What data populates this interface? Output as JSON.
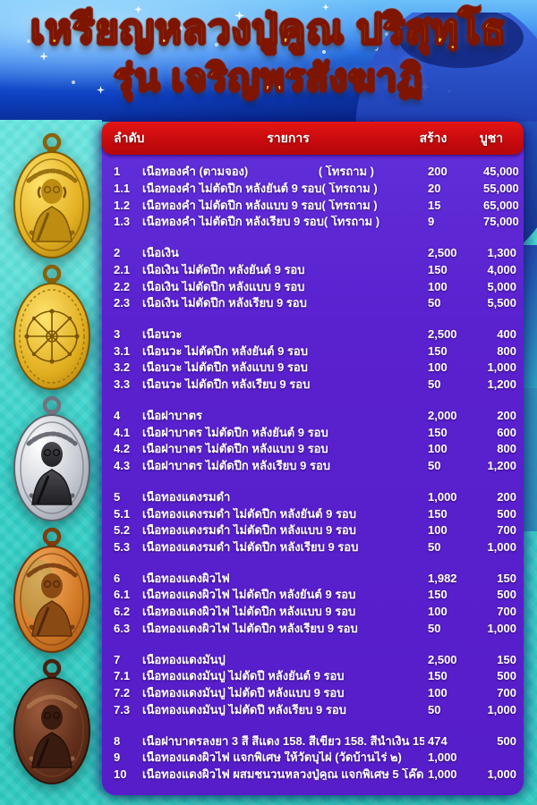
{
  "title": {
    "line1": "เหรียญหลวงปู่คูณ ปริสุทฺโธ",
    "line2": "รุ่น เจริญพรสังฆาฏิ"
  },
  "table": {
    "columns": {
      "no": "ลำดับ",
      "item": "รายการ",
      "made": "สร้าง",
      "price": "บูชา"
    },
    "sections": [
      {
        "rows": [
          {
            "no": "1",
            "item": "เนื้อทองคำ (ตามจอง)",
            "note": "( โทรถาม )",
            "made": "200",
            "price": "45,000"
          },
          {
            "no": "1.1",
            "item": "เนื้อทองคำ ไม่ตัดปีก หลังยันต์ 9 รอบ",
            "note": "( โทรถาม )",
            "made": "20",
            "price": "55,000"
          },
          {
            "no": "1.2",
            "item": "เนื้อทองคำ ไม่ตัดปีก หลังแบบ 9 รอบ",
            "note": "( โทรถาม )",
            "made": "15",
            "price": "65,000"
          },
          {
            "no": "1.3",
            "item": "เนื้อทองคำ ไม่ตัดปีก หลังเรียบ 9 รอบ",
            "note": "( โทรถาม )",
            "made": "9",
            "price": "75,000"
          }
        ]
      },
      {
        "rows": [
          {
            "no": "2",
            "item": "เนื้อเงิน",
            "made": "2,500",
            "price": "1,300"
          },
          {
            "no": "2.1",
            "item": "เนื้อเงิน ไม่ตัดปีก หลังยันต์ 9 รอบ",
            "made": "150",
            "price": "4,000"
          },
          {
            "no": "2.2",
            "item": "เนื้อเงิน ไม่ตัดปีก หลังแบบ 9 รอบ",
            "made": "100",
            "price": "5,000"
          },
          {
            "no": "2.3",
            "item": "เนื้อเงิน ไม่ตัดปีก หลังเรียบ 9 รอบ",
            "made": "50",
            "price": "5,500"
          }
        ]
      },
      {
        "rows": [
          {
            "no": "3",
            "item": "เนื้อนวะ",
            "made": "2,500",
            "price": "400"
          },
          {
            "no": "3.1",
            "item": "เนื้อนวะ ไม่ตัดปีก หลังยันต์ 9 รอบ",
            "made": "150",
            "price": "800"
          },
          {
            "no": "3.2",
            "item": "เนื้อนวะ ไม่ตัดปีก หลังแบบ 9 รอบ",
            "made": "100",
            "price": "1,000"
          },
          {
            "no": "3.3",
            "item": "เนื้อนวะ ไม่ตัดปีก หลังเรียบ 9 รอบ",
            "made": "50",
            "price": "1,200"
          }
        ]
      },
      {
        "rows": [
          {
            "no": "4",
            "item": "เนื้อฝาบาตร",
            "made": "2,000",
            "price": "200"
          },
          {
            "no": "4.1",
            "item": "เนื้อฝาบาตร ไม่ตัดปีก หลังยันต์ 9 รอบ",
            "made": "150",
            "price": "600"
          },
          {
            "no": "4.2",
            "item": "เนื้อฝาบาตร ไม่ตัดปีก หลังแบบ 9 รอบ",
            "made": "100",
            "price": "800"
          },
          {
            "no": "4.3",
            "item": "เนื้อฝาบาตร ไม่ตัดปีก หลังเรียบ 9 รอบ",
            "made": "50",
            "price": "1,200"
          }
        ]
      },
      {
        "rows": [
          {
            "no": "5",
            "item": "เนื้อทองแดงรมดำ",
            "made": "1,000",
            "price": "200"
          },
          {
            "no": "5.1",
            "item": "เนื้อทองแดงรมดำ ไม่ตัดปีก หลังยันต์ 9 รอบ",
            "made": "150",
            "price": "500"
          },
          {
            "no": "5.2",
            "item": "เนื้อทองแดงรมดำ ไม่ตัดปีก หลังแบบ 9 รอบ",
            "made": "100",
            "price": "700"
          },
          {
            "no": "5.3",
            "item": "เนื้อทองแดงรมดำ ไม่ตัดปีก หลังเรียบ 9 รอบ",
            "made": "50",
            "price": "1,000"
          }
        ]
      },
      {
        "rows": [
          {
            "no": "6",
            "item": "เนื้อทองแดงผิวไฟ",
            "made": "1,982",
            "price": "150"
          },
          {
            "no": "6.1",
            "item": "เนื้อทองแดงผิวไฟ ไม่ตัดปีก หลังยันต์ 9 รอบ",
            "made": "150",
            "price": "500"
          },
          {
            "no": "6.2",
            "item": "เนื้อทองแดงผิวไฟ ไม่ตัดปีก หลังแบบ 9 รอบ",
            "made": "100",
            "price": "700"
          },
          {
            "no": "6.3",
            "item": "เนื้อทองแดงผิวไฟ ไม่ตัดปีก หลังเรียบ 9 รอบ",
            "made": "50",
            "price": "1,000"
          }
        ]
      },
      {
        "rows": [
          {
            "no": "7",
            "item": "เนื้อทองแดงมันปู",
            "made": "2,500",
            "price": "150"
          },
          {
            "no": "7.1",
            "item": "เนื้อทองแดงมันปู ไม่ตัดปี หลังยันต์ 9 รอบ",
            "made": "150",
            "price": "500"
          },
          {
            "no": "7.2",
            "item": "เนื้อทองแดงมันปู ไม่ตัดปี หลังแบบ 9 รอบ",
            "made": "100",
            "price": "700"
          },
          {
            "no": "7.3",
            "item": "เนื้อทองแดงมันปู ไม่ตัดปี หลังเรียบ 9 รอบ",
            "made": "50",
            "price": "1,000"
          }
        ]
      },
      {
        "rows": [
          {
            "no": "8",
            "item": "เนื้อฝาบาตรลงยา 3 สี สีแดง 158. สีเขียว 158. สีน้ำเงิน 158",
            "made": "474",
            "price": "500"
          },
          {
            "no": "9",
            "item": "เนื้อทองแดงผิวไฟ แจกพิเศษ ให้วัดบุไผ่ (วัดบ้านไร่ ๒)",
            "made": "1,000",
            "price": ""
          },
          {
            "no": "10",
            "item": "เนื้อทองแดงผิวไฟ ผสมชนวนหลวงปู่คูณ แจกพิเศษ 5 โค๊ด 9 รอบ",
            "made": "1,000",
            "price": "1,000"
          }
        ]
      }
    ]
  },
  "amulets": [
    {
      "id": "amulet-gold-front",
      "color": "#e8b923"
    },
    {
      "id": "amulet-gold-back-yantra",
      "color": "#e8b923"
    },
    {
      "id": "amulet-silver-front",
      "color": "#c9ccd2"
    },
    {
      "id": "amulet-copper-fire-front",
      "color": "#d07a2e"
    },
    {
      "id": "amulet-copper-dark-front",
      "color": "#6e3a22"
    }
  ],
  "colors": {
    "header_red": "#c90b0e",
    "panel_purple": "#5a21cf",
    "banner_blue": "#1e62e0",
    "background_cyan": "#3cd6cc",
    "title_gold": "#ffd21e",
    "title_outline": "#7d1500"
  }
}
